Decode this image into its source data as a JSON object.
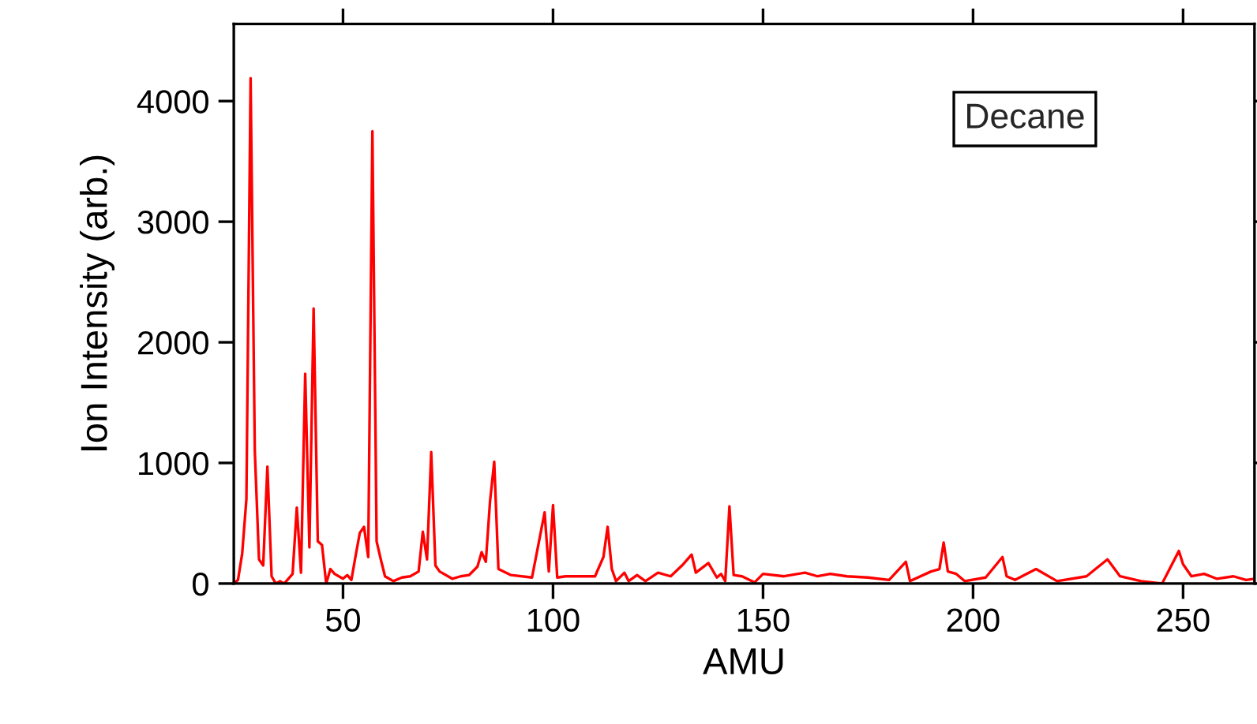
{
  "chart_data": {
    "type": "line",
    "xlabel": "AMU",
    "ylabel": "Ion Intensity (arb.)",
    "annotations": [
      "Decane"
    ],
    "x": [
      24,
      25,
      26,
      27,
      28,
      29,
      30,
      31,
      32,
      33,
      34,
      35,
      36,
      37,
      38,
      39,
      40,
      41,
      42,
      43,
      44,
      45,
      46,
      47,
      48,
      49,
      50,
      51,
      52,
      53,
      54,
      55,
      56,
      57,
      58,
      59,
      60,
      62,
      64,
      66,
      68,
      69,
      70,
      71,
      72,
      73,
      76,
      78,
      80,
      82,
      83,
      84,
      85,
      86,
      87,
      90,
      95,
      98,
      99,
      100,
      101,
      103,
      105,
      110,
      112,
      113,
      114,
      115,
      117,
      118,
      120,
      122,
      125,
      128,
      131,
      133,
      134,
      137,
      139,
      140,
      141,
      142,
      143,
      145,
      148,
      150,
      155,
      160,
      163,
      166,
      170,
      175,
      180,
      184,
      185,
      190,
      192,
      193,
      194,
      196,
      198,
      203,
      207,
      208,
      210,
      215,
      220,
      227,
      232,
      235,
      240,
      245,
      249,
      250,
      252,
      255,
      258,
      262,
      265,
      267
    ],
    "series": [
      {
        "color": "#ff0000",
        "values": [
          0,
          30,
          250,
          700,
          4190,
          1100,
          200,
          150,
          970,
          60,
          0,
          20,
          0,
          40,
          80,
          630,
          90,
          1740,
          300,
          2280,
          350,
          320,
          0,
          120,
          80,
          60,
          40,
          70,
          30,
          230,
          420,
          470,
          220,
          3750,
          350,
          200,
          60,
          20,
          50,
          60,
          100,
          430,
          200,
          1090,
          150,
          100,
          40,
          60,
          70,
          140,
          260,
          180,
          680,
          1010,
          120,
          70,
          50,
          590,
          100,
          650,
          50,
          60,
          60,
          60,
          220,
          470,
          120,
          20,
          90,
          20,
          70,
          20,
          90,
          60,
          160,
          240,
          90,
          170,
          50,
          80,
          20,
          640,
          70,
          60,
          10,
          80,
          60,
          90,
          60,
          80,
          60,
          50,
          30,
          180,
          20,
          100,
          120,
          340,
          100,
          80,
          20,
          50,
          220,
          60,
          30,
          120,
          20,
          60,
          200,
          60,
          20,
          0,
          270,
          160,
          60,
          80,
          40,
          60,
          30,
          40
        ]
      }
    ],
    "xlim": [
      24,
      267
    ],
    "ylim": [
      0,
      4640
    ],
    "xticks": [
      50,
      100,
      150,
      200,
      250
    ],
    "yticks": [
      0,
      1000,
      2000,
      3000,
      4000
    ],
    "grid": false,
    "marker": "none",
    "line_style": "solid"
  }
}
